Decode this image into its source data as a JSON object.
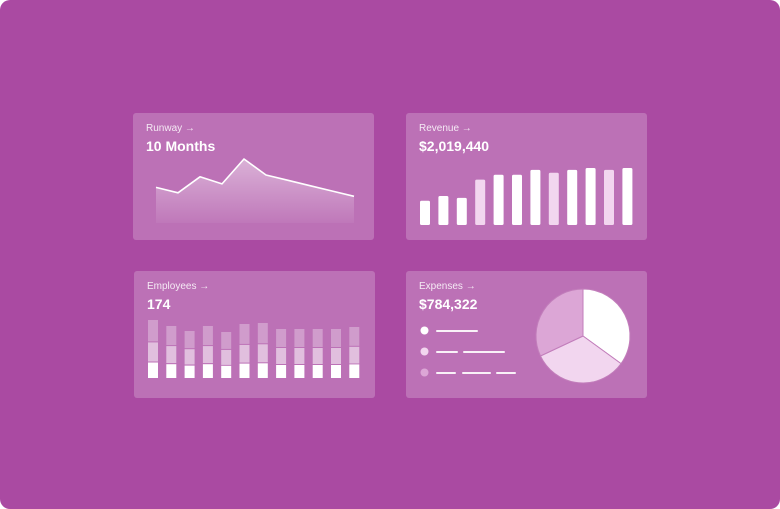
{
  "cards": {
    "runway": {
      "label": "Runway →",
      "value": "10 Months"
    },
    "revenue": {
      "label": "Revenue →",
      "value": "$2,019,440"
    },
    "employees": {
      "label": "Employees →",
      "value": "174"
    },
    "expenses": {
      "label": "Expenses →",
      "value": "$784,322"
    }
  },
  "chart_data": [
    {
      "type": "area",
      "values": [
        20,
        17,
        26,
        22,
        36,
        27,
        24,
        21,
        18,
        15
      ]
    },
    {
      "type": "bar",
      "values": [
        25,
        30,
        28,
        47,
        52,
        52,
        57,
        54,
        57,
        59,
        57,
        59
      ],
      "highlighted": [
        3,
        7,
        10
      ]
    },
    {
      "type": "bar",
      "stacked": true,
      "values": [
        59,
        53,
        48,
        53,
        47,
        55,
        56,
        50,
        50,
        50,
        50,
        52
      ]
    },
    {
      "type": "pie",
      "values": [
        35,
        33,
        32
      ],
      "colors": [
        "#ffffff",
        "#f2d6ef",
        "#dca6d6"
      ]
    }
  ],
  "colors": {
    "background": "#aa4aa2",
    "card": "rgba(255,255,255,0.22)"
  }
}
